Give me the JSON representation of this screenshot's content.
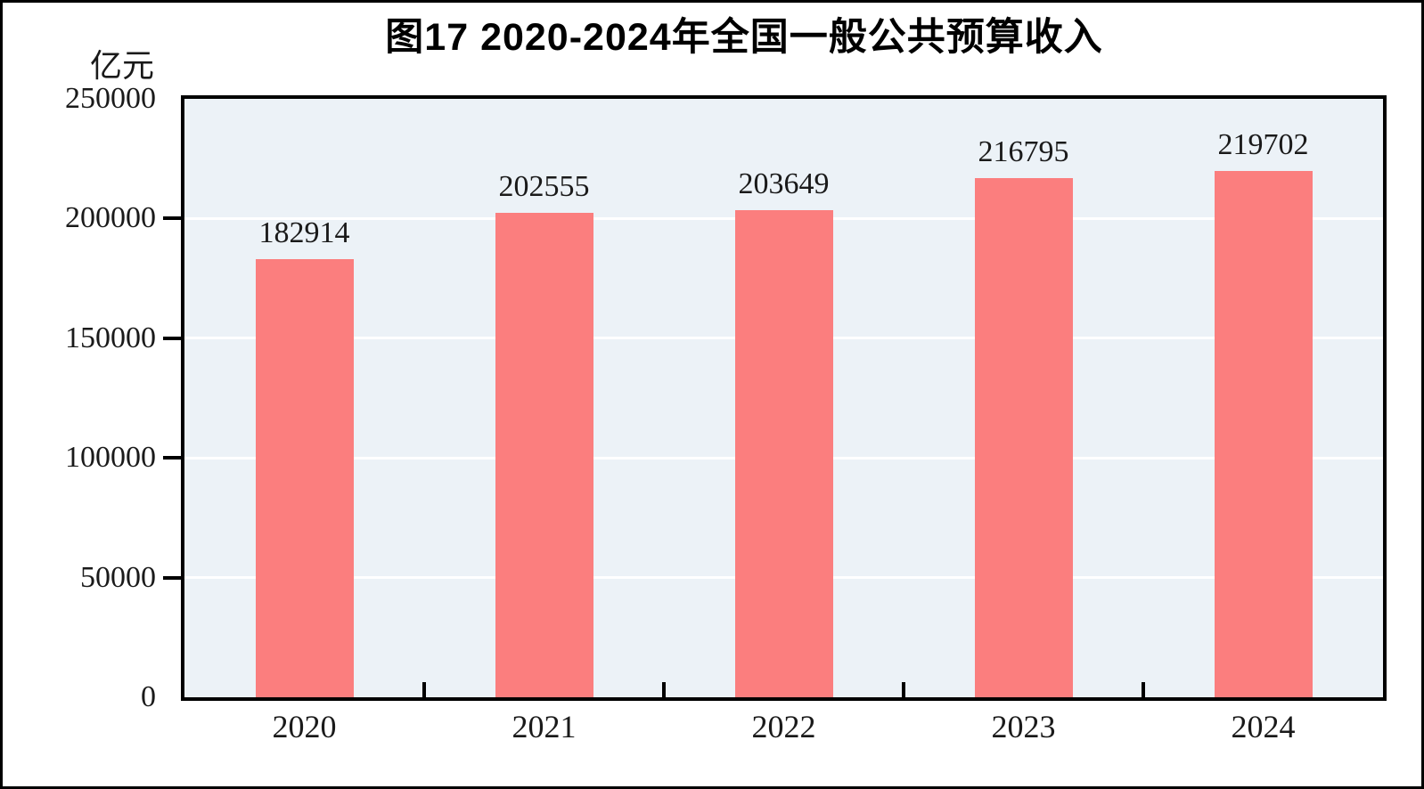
{
  "figure": {
    "title": "图17  2020-2024年全国一般公共预算收入",
    "unit_label": "亿元"
  },
  "chart_data": {
    "type": "bar",
    "title": "图17  2020-2024年全国一般公共预算收入",
    "categories": [
      "2020",
      "2021",
      "2022",
      "2023",
      "2024"
    ],
    "values": [
      182914,
      202555,
      203649,
      216795,
      219702
    ],
    "value_labels": [
      "182914",
      "202555",
      "203649",
      "216795",
      "219702"
    ],
    "xlabel": "",
    "ylabel": "亿元",
    "ylim": [
      0,
      250000
    ],
    "yticks": [
      0,
      50000,
      100000,
      150000,
      200000,
      250000
    ],
    "ytick_labels": [
      "0",
      "50000",
      "100000",
      "150000",
      "200000",
      "250000"
    ],
    "gridline_values": [
      50000,
      100000,
      150000,
      200000
    ],
    "grid": true,
    "legend": "none",
    "value_labels_shown": true,
    "colors": {
      "bar": "#fb7e7e",
      "plot_background": "#ecf2f7",
      "gridline": "#ffffff",
      "axis": "#000000",
      "text": "#1a1a1a"
    }
  }
}
